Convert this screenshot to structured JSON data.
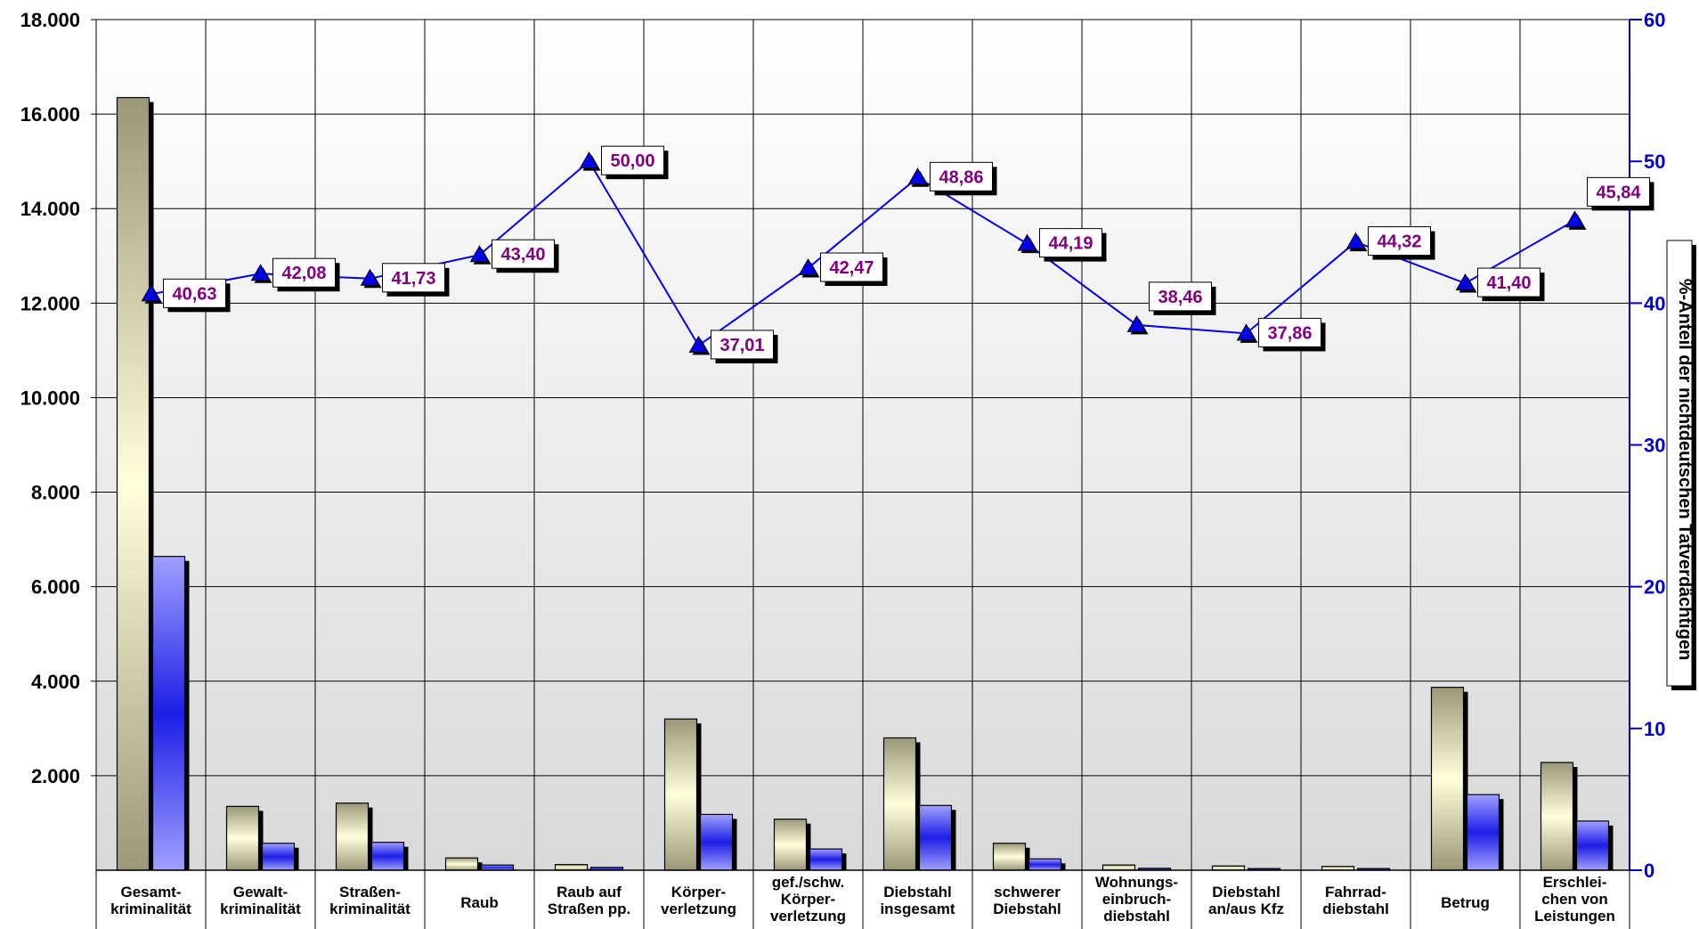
{
  "chart_data": {
    "type": "bar",
    "categories": [
      [
        "Gesamt-",
        "kriminalität"
      ],
      [
        "Gewalt-",
        "kriminalität"
      ],
      [
        "Straßen-",
        "kriminalität"
      ],
      [
        "Raub"
      ],
      [
        "Raub auf",
        "Straßen pp."
      ],
      [
        "Körper-",
        "verletzung"
      ],
      [
        "gef./schw.",
        "Körper-",
        "verletzung"
      ],
      [
        "Diebstahl",
        "insgesamt"
      ],
      [
        "schwerer",
        "Diebstahl"
      ],
      [
        "Wohnungs-",
        "einbruch-",
        "diebstahl"
      ],
      [
        "Diebstahl",
        "an/aus Kfz"
      ],
      [
        "Fahrrad-",
        "diebstahl"
      ],
      [
        "Betrug"
      ],
      [
        "Erschlei-",
        "chen von",
        "Leistungen"
      ]
    ],
    "series": [
      {
        "values": [
          16350,
          1350,
          1420,
          260,
          120,
          3200,
          1080,
          2800,
          570,
          110,
          90,
          80,
          3870,
          2280
        ]
      },
      {
        "values": [
          6640,
          570,
          590,
          110,
          60,
          1180,
          450,
          1370,
          240,
          40,
          35,
          35,
          1600,
          1040
        ]
      },
      {
        "axis": "right",
        "type": "line",
        "values": [
          40.63,
          42.08,
          41.73,
          43.4,
          50.0,
          37.01,
          42.47,
          48.86,
          44.19,
          38.46,
          37.86,
          44.32,
          41.4,
          45.84
        ],
        "labels": [
          "40,63",
          "42,08",
          "41,73",
          "43,40",
          "50,00",
          "37,01",
          "42,47",
          "48,86",
          "44,19",
          "38,46",
          "37,86",
          "44,32",
          "41,40",
          "45,84"
        ]
      }
    ],
    "ylim": [
      0,
      18000
    ],
    "yticks": [
      2000,
      4000,
      6000,
      8000,
      10000,
      12000,
      14000,
      16000,
      18000
    ],
    "ytick_labels": [
      "2.000",
      "4.000",
      "6.000",
      "8.000",
      "10.000",
      "12.000",
      "14.000",
      "16.000",
      "18.000"
    ],
    "y2lim": [
      0,
      60
    ],
    "y2ticks": [
      0,
      10,
      20,
      30,
      40,
      50,
      60
    ],
    "y2label": "%-Anteil der nichtdeutschen Tatverdächtigen",
    "grid": true,
    "colors": {
      "series1_dark": "#9a9878",
      "series1_light": "#ffffdc",
      "series2_dark": "#1e1ee6",
      "series2_light": "#a0a0ff",
      "line": "#0000ee",
      "marker": "#0000ee",
      "data_label": "#800080",
      "right_axis": "#0000cc"
    }
  }
}
